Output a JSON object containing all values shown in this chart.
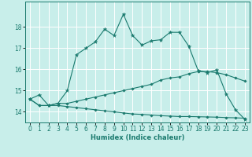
{
  "title": "",
  "xlabel": "Humidex (Indice chaleur)",
  "bg_color": "#c8eeea",
  "grid_color": "#ffffff",
  "line_color": "#1a7a6e",
  "xlim": [
    -0.5,
    23.5
  ],
  "ylim": [
    13.5,
    19.2
  ],
  "xticks": [
    0,
    1,
    2,
    3,
    4,
    5,
    6,
    7,
    8,
    9,
    10,
    11,
    12,
    13,
    14,
    15,
    16,
    17,
    18,
    19,
    20,
    21,
    22,
    23
  ],
  "yticks": [
    14,
    15,
    16,
    17,
    18
  ],
  "line1_x": [
    0,
    1,
    2,
    3,
    4,
    5,
    6,
    7,
    8,
    9,
    10,
    11,
    12,
    13,
    14,
    15,
    16,
    17,
    18,
    19,
    20,
    21,
    22,
    23
  ],
  "line1_y": [
    14.6,
    14.8,
    14.3,
    14.4,
    15.0,
    16.7,
    17.0,
    17.3,
    17.9,
    17.6,
    18.6,
    17.6,
    17.15,
    17.35,
    17.4,
    17.75,
    17.75,
    17.1,
    15.95,
    15.85,
    15.98,
    14.85,
    14.1,
    13.65
  ],
  "line2_x": [
    0,
    1,
    2,
    3,
    4,
    5,
    6,
    7,
    8,
    9,
    10,
    11,
    12,
    13,
    14,
    15,
    16,
    17,
    18,
    19,
    20,
    21,
    22,
    23
  ],
  "line2_y": [
    14.6,
    14.3,
    14.3,
    14.4,
    14.4,
    14.5,
    14.6,
    14.7,
    14.8,
    14.9,
    15.0,
    15.1,
    15.2,
    15.3,
    15.5,
    15.6,
    15.65,
    15.8,
    15.9,
    15.9,
    15.85,
    15.75,
    15.6,
    15.45
  ],
  "line3_x": [
    0,
    1,
    2,
    3,
    4,
    5,
    6,
    7,
    8,
    9,
    10,
    11,
    12,
    13,
    14,
    15,
    16,
    17,
    18,
    19,
    20,
    21,
    22,
    23
  ],
  "line3_y": [
    14.6,
    14.3,
    14.3,
    14.3,
    14.25,
    14.2,
    14.15,
    14.1,
    14.05,
    14.0,
    13.95,
    13.9,
    13.88,
    13.85,
    13.82,
    13.8,
    13.78,
    13.78,
    13.77,
    13.76,
    13.75,
    13.73,
    13.72,
    13.7
  ]
}
